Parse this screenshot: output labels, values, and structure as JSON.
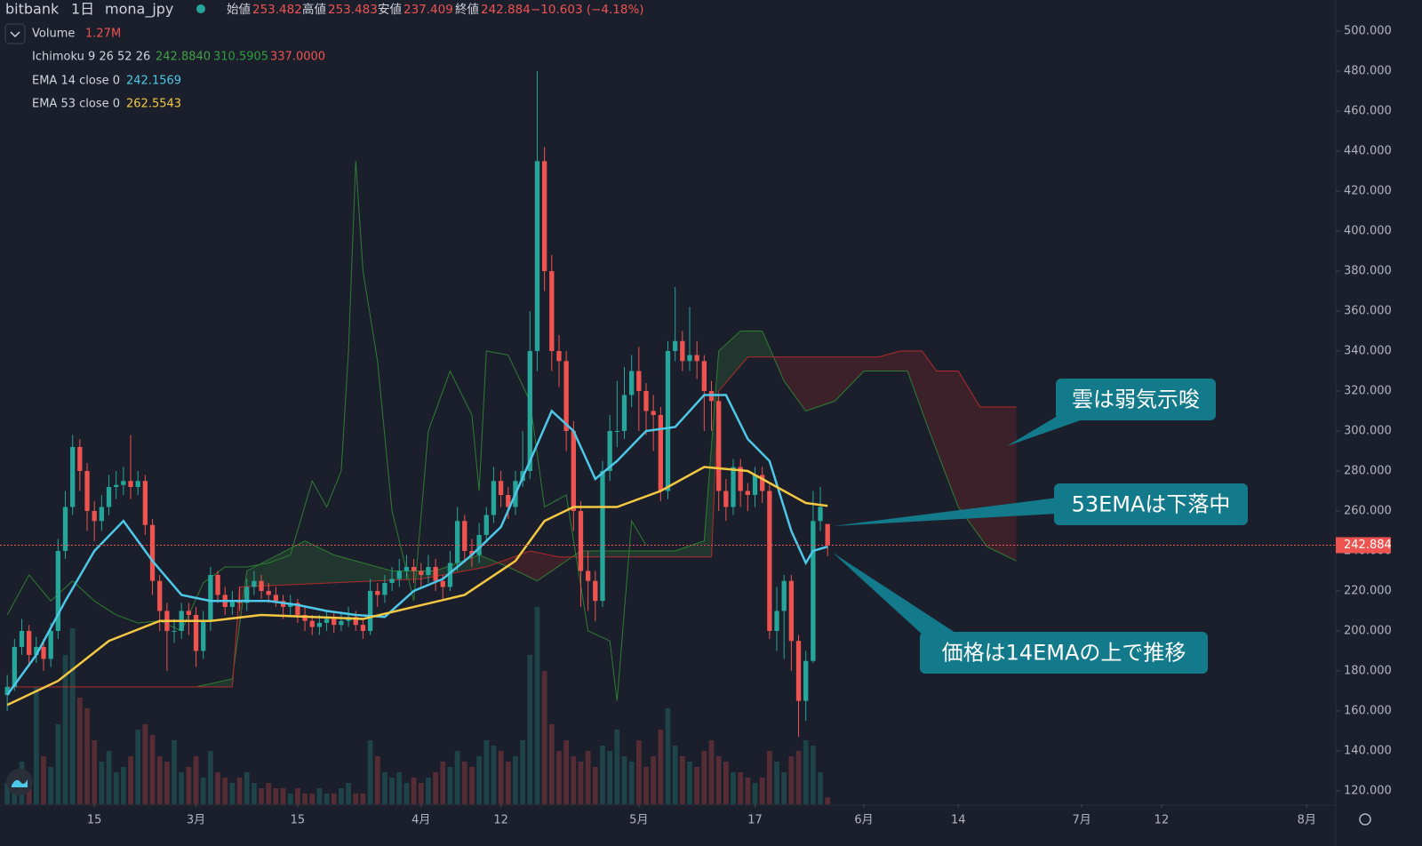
{
  "chart_data": {
    "type": "candlestick",
    "header": {
      "exchange": "bitbank",
      "interval": "1日",
      "symbol": "mona_jpy",
      "ohlc": [
        {
          "label": "始値",
          "value": 253.482
        },
        {
          "label": "高値",
          "value": 253.483
        },
        {
          "label": "安値",
          "value": 237.409
        },
        {
          "label": "終値",
          "value": 242.884
        }
      ],
      "change": "−10.603 (−4.18%)"
    },
    "volume_legend": {
      "text": "Volume",
      "value_label": "1.27M"
    },
    "ichimoku_legend": {
      "text": "Ichimoku 9 26 52 26",
      "value_labels": [
        "242.8840",
        "310.5905",
        "337.0000"
      ],
      "colors": [
        "#43a047",
        "#2e9e3e",
        "#ef5350"
      ]
    },
    "colors": {
      "up": "#26a69a",
      "down": "#ef5350"
    },
    "x": [
      "02-03",
      "02-04",
      "02-05",
      "02-06",
      "02-07",
      "02-08",
      "02-09",
      "02-10",
      "02-11",
      "02-12",
      "02-13",
      "02-14",
      "02-15",
      "02-16",
      "02-17",
      "02-18",
      "02-19",
      "02-20",
      "02-21",
      "02-22",
      "02-23",
      "02-24",
      "02-25",
      "02-26",
      "02-27",
      "02-28",
      "03-01",
      "03-02",
      "03-03",
      "03-04",
      "03-05",
      "03-06",
      "03-07",
      "03-08",
      "03-09",
      "03-10",
      "03-11",
      "03-12",
      "03-13",
      "03-14",
      "03-15",
      "03-16",
      "03-17",
      "03-18",
      "03-19",
      "03-20",
      "03-21",
      "03-22",
      "03-23",
      "03-24",
      "03-25",
      "03-26",
      "03-27",
      "03-28",
      "03-29",
      "03-30",
      "03-31",
      "04-01",
      "04-02",
      "04-03",
      "04-04",
      "04-05",
      "04-06",
      "04-07",
      "04-08",
      "04-09",
      "04-10",
      "04-11",
      "04-12",
      "04-13",
      "04-14",
      "04-15",
      "04-16",
      "04-17",
      "04-18",
      "04-19",
      "04-20",
      "04-21",
      "04-22",
      "04-23",
      "04-24",
      "04-25",
      "04-26",
      "04-27",
      "04-28",
      "04-29",
      "04-30",
      "05-01",
      "05-02",
      "05-03",
      "05-04",
      "05-05",
      "05-06",
      "05-07",
      "05-08",
      "05-09",
      "05-10",
      "05-11",
      "05-12",
      "05-13",
      "05-14",
      "05-15",
      "05-16",
      "05-17",
      "05-18",
      "05-19",
      "05-20",
      "05-21",
      "05-22",
      "05-23",
      "05-24",
      "05-25",
      "05-26",
      "05-27"
    ],
    "open": [
      168,
      172,
      192,
      200,
      188,
      192,
      186,
      200,
      240,
      262,
      292,
      280,
      260,
      255,
      262,
      272,
      273,
      275,
      272,
      275,
      253,
      225,
      210,
      200,
      200,
      210,
      208,
      190,
      205,
      228,
      218,
      212,
      215,
      214,
      222,
      225,
      220,
      218,
      215,
      212,
      214,
      208,
      205,
      202,
      204,
      206,
      203,
      205,
      207,
      203,
      200,
      220,
      218,
      224,
      226,
      230,
      232,
      230,
      228,
      232,
      225,
      222,
      234,
      255,
      240,
      238,
      248,
      258,
      275,
      268,
      262,
      275,
      280,
      340,
      435,
      380,
      340,
      335,
      300,
      260,
      230,
      225,
      215,
      280,
      300,
      300,
      318,
      330,
      320,
      310,
      308,
      270,
      340,
      345,
      335,
      338,
      335,
      320,
      315,
      270,
      262,
      282,
      270,
      268,
      278,
      270,
      200,
      210,
      225,
      195,
      165,
      185,
      255,
      253.482
    ],
    "high": [
      178,
      196,
      206,
      203,
      197,
      196,
      204,
      246,
      270,
      298,
      296,
      284,
      265,
      268,
      278,
      280,
      282,
      298,
      280,
      278,
      256,
      228,
      214,
      206,
      214,
      214,
      212,
      210,
      232,
      230,
      222,
      220,
      222,
      226,
      230,
      228,
      224,
      222,
      218,
      218,
      216,
      212,
      208,
      208,
      210,
      210,
      209,
      212,
      210,
      206,
      226,
      224,
      228,
      232,
      236,
      238,
      236,
      234,
      238,
      236,
      228,
      240,
      262,
      258,
      246,
      254,
      262,
      282,
      280,
      272,
      280,
      300,
      360,
      480,
      442,
      388,
      348,
      340,
      305,
      265,
      240,
      230,
      285,
      308,
      325,
      332,
      338,
      342,
      324,
      318,
      312,
      345,
      372,
      350,
      362,
      345,
      338,
      325,
      318,
      276,
      286,
      286,
      274,
      282,
      282,
      273,
      222,
      228,
      228,
      198,
      190,
      270,
      272,
      253.483
    ],
    "low": [
      160,
      170,
      188,
      182,
      184,
      180,
      182,
      196,
      236,
      258,
      270,
      250,
      245,
      250,
      258,
      266,
      268,
      266,
      268,
      248,
      218,
      200,
      180,
      194,
      196,
      198,
      182,
      186,
      200,
      214,
      208,
      208,
      210,
      210,
      218,
      216,
      214,
      212,
      206,
      208,
      204,
      200,
      198,
      198,
      200,
      199,
      200,
      202,
      200,
      196,
      198,
      212,
      214,
      220,
      222,
      226,
      224,
      222,
      224,
      220,
      216,
      220,
      230,
      234,
      232,
      234,
      244,
      254,
      262,
      256,
      258,
      272,
      276,
      330,
      370,
      330,
      322,
      290,
      250,
      212,
      210,
      205,
      212,
      275,
      292,
      296,
      312,
      300,
      298,
      290,
      265,
      266,
      335,
      330,
      330,
      326,
      300,
      300,
      260,
      255,
      258,
      262,
      260,
      262,
      264,
      196,
      190,
      186,
      180,
      147,
      155,
      184,
      250,
      237.409
    ],
    "close": [
      172,
      192,
      200,
      188,
      192,
      186,
      200,
      240,
      262,
      292,
      280,
      260,
      255,
      262,
      272,
      273,
      275,
      272,
      275,
      253,
      225,
      210,
      200,
      200,
      210,
      208,
      190,
      205,
      228,
      218,
      212,
      215,
      214,
      222,
      225,
      220,
      218,
      215,
      212,
      214,
      208,
      205,
      202,
      204,
      206,
      203,
      205,
      207,
      203,
      200,
      220,
      218,
      224,
      226,
      230,
      232,
      230,
      228,
      232,
      225,
      222,
      234,
      255,
      240,
      238,
      248,
      258,
      275,
      268,
      262,
      275,
      280,
      340,
      435,
      380,
      340,
      335,
      300,
      260,
      230,
      225,
      215,
      280,
      300,
      300,
      318,
      330,
      320,
      310,
      308,
      270,
      340,
      345,
      335,
      338,
      335,
      320,
      315,
      270,
      262,
      282,
      270,
      268,
      278,
      270,
      200,
      210,
      225,
      195,
      165,
      185,
      255,
      262,
      242.884
    ],
    "volume": {
      "values": [
        4,
        6,
        8,
        5,
        22,
        9,
        7,
        15,
        28,
        33,
        20,
        18,
        12,
        8,
        10,
        6,
        7,
        9,
        14,
        15,
        13,
        9,
        8,
        12,
        6,
        7,
        9,
        5,
        10,
        6,
        5,
        4,
        5,
        6,
        4,
        3,
        4,
        3,
        3,
        2,
        3,
        2,
        2,
        3,
        2,
        2,
        3,
        4,
        2,
        2,
        12,
        9,
        6,
        5,
        6,
        4,
        5,
        4,
        5,
        6,
        8,
        7,
        10,
        8,
        7,
        9,
        12,
        11,
        10,
        8,
        9,
        12,
        28,
        37,
        25,
        15,
        10,
        12,
        9,
        8,
        10,
        7,
        11,
        10,
        14,
        9,
        8,
        12,
        7,
        9,
        14,
        18,
        11,
        9,
        8,
        7,
        10,
        12,
        9,
        8,
        6,
        6,
        5,
        4,
        5,
        10,
        8,
        6,
        9,
        10,
        12,
        11,
        6,
        1.27
      ]
    },
    "lines": [
      {
        "name": "EMA 14 close 0",
        "color": "#4dc8e8",
        "x": [
          "02-03",
          "02-07",
          "02-11",
          "02-15",
          "02-19",
          "02-23",
          "02-27",
          "03-03",
          "03-07",
          "03-11",
          "03-15",
          "03-19",
          "03-23",
          "03-27",
          "03-31",
          "04-04",
          "04-08",
          "04-12",
          "04-16",
          "04-19",
          "04-22",
          "04-25",
          "04-28",
          "05-02",
          "05-06",
          "05-10",
          "05-13",
          "05-16",
          "05-19",
          "05-22",
          "05-24",
          "05-25",
          "05-27"
        ],
        "values": [
          168,
          188,
          215,
          240,
          255,
          235,
          218,
          215,
          215,
          215,
          213,
          210,
          208,
          207,
          220,
          226,
          238,
          252,
          285,
          310,
          300,
          276,
          285,
          300,
          302,
          318,
          318,
          296,
          285,
          250,
          234,
          240,
          242.1569
        ]
      },
      {
        "name": "EMA 53 close 0",
        "color": "#f5c842",
        "x": [
          "02-03",
          "02-10",
          "02-17",
          "02-24",
          "03-03",
          "03-10",
          "03-17",
          "03-24",
          "03-31",
          "04-07",
          "04-14",
          "04-18",
          "04-22",
          "04-28",
          "05-04",
          "05-10",
          "05-16",
          "05-20",
          "05-24",
          "05-27"
        ],
        "values": [
          163,
          175,
          195,
          205,
          205,
          208,
          207,
          206,
          212,
          218,
          235,
          255,
          262,
          262,
          270,
          282,
          280,
          272,
          264,
          262.5543
        ]
      }
    ],
    "ichimoku": {
      "span_a": {
        "color": "#2e7d32",
        "x": [
          "02-03",
          "02-15",
          "03-01",
          "03-06",
          "03-08",
          "03-16",
          "03-20",
          "03-28",
          "04-03",
          "04-09",
          "04-13",
          "04-17",
          "04-23",
          "04-29",
          "05-06",
          "05-10",
          "05-12",
          "05-15",
          "05-18",
          "05-21",
          "05-24",
          "05-28",
          "06-01",
          "06-07",
          "06-10",
          "06-14",
          "06-18",
          "06-22"
        ],
        "values": [
          172,
          172,
          172,
          176,
          230,
          245,
          238,
          230,
          230,
          238,
          232,
          225,
          240,
          240,
          240,
          245,
          340,
          350,
          350,
          325,
          310,
          315,
          330,
          330,
          300,
          262,
          242,
          235
        ]
      },
      "span_b": {
        "color": "#b22a2a",
        "x": [
          "02-03",
          "03-06",
          "03-07",
          "04-01",
          "04-10",
          "04-16",
          "04-20",
          "05-11",
          "05-12",
          "05-16",
          "06-03",
          "06-06",
          "06-09",
          "06-11",
          "06-14",
          "06-17",
          "06-22"
        ],
        "values": [
          172,
          172,
          222,
          226,
          232,
          240,
          237,
          237,
          320,
          337,
          337,
          340,
          340,
          330,
          330,
          312,
          312
        ]
      },
      "lagging": {
        "color": "#2e7d32",
        "x": [
          "02-03",
          "02-06",
          "02-09",
          "02-12",
          "02-15",
          "02-18",
          "02-21",
          "02-24",
          "02-27",
          "03-02",
          "03-05",
          "03-08",
          "03-11",
          "03-14",
          "03-17",
          "03-19",
          "03-21",
          "03-22",
          "03-23",
          "03-24",
          "03-26",
          "03-28",
          "03-31",
          "04-02",
          "04-05",
          "04-08",
          "04-09",
          "04-10",
          "04-13",
          "04-16",
          "04-18",
          "04-21",
          "04-24",
          "04-27",
          "04-28",
          "04-30",
          "05-02"
        ],
        "values": [
          208,
          228,
          215,
          225,
          215,
          208,
          204,
          205,
          200,
          224,
          232,
          232,
          234,
          238,
          275,
          262,
          280,
          340,
          435,
          380,
          335,
          260,
          215,
          300,
          330,
          308,
          270,
          340,
          338,
          315,
          262,
          268,
          200,
          195,
          165,
          255,
          242.884
        ]
      }
    },
    "xlim": [
      "02-02",
      "08-05"
    ],
    "xticks": [
      {
        "value": "02-15",
        "label": "15"
      },
      {
        "value": "03-01",
        "label": "3月"
      },
      {
        "value": "03-15",
        "label": "15"
      },
      {
        "value": "04-01",
        "label": "4月"
      },
      {
        "value": "04-12",
        "label": "12"
      },
      {
        "value": "05-01",
        "label": "5月"
      },
      {
        "value": "05-17",
        "label": "17"
      },
      {
        "value": "06-01",
        "label": "6月"
      },
      {
        "value": "06-14",
        "label": "14"
      },
      {
        "value": "07-01",
        "label": "7月"
      },
      {
        "value": "07-12",
        "label": "12"
      },
      {
        "value": "08-01",
        "label": "8月"
      }
    ],
    "ylim": [
      113.3,
      515.6
    ],
    "yticks": [
      {
        "value": 120,
        "label": "120.000"
      },
      {
        "value": 140,
        "label": "140.000"
      },
      {
        "value": 160,
        "label": "160.000"
      },
      {
        "value": 180,
        "label": "180.000"
      },
      {
        "value": 200,
        "label": "200.000"
      },
      {
        "value": 220,
        "label": "220.000"
      },
      {
        "value": 240,
        "label": "240.000"
      },
      {
        "value": 260,
        "label": "260.000"
      },
      {
        "value": 280,
        "label": "280.000"
      },
      {
        "value": 300,
        "label": "300.000"
      },
      {
        "value": 320,
        "label": "320.000"
      },
      {
        "value": 340,
        "label": "340.000"
      },
      {
        "value": 360,
        "label": "360.000"
      },
      {
        "value": 380,
        "label": "380.000"
      },
      {
        "value": 400,
        "label": "400.000"
      },
      {
        "value": 420,
        "label": "420.000"
      },
      {
        "value": 440,
        "label": "440.000"
      },
      {
        "value": 460,
        "label": "460.000"
      },
      {
        "value": 480,
        "label": "480.000"
      },
      {
        "value": 500,
        "label": "500.000"
      }
    ],
    "price_line": {
      "value": 242.884,
      "label": "242.884"
    },
    "grid": false,
    "annotations": [
      "雲は弱気示唆",
      "53EMAは下落中",
      "価格は14EMAの上で推移"
    ]
  }
}
